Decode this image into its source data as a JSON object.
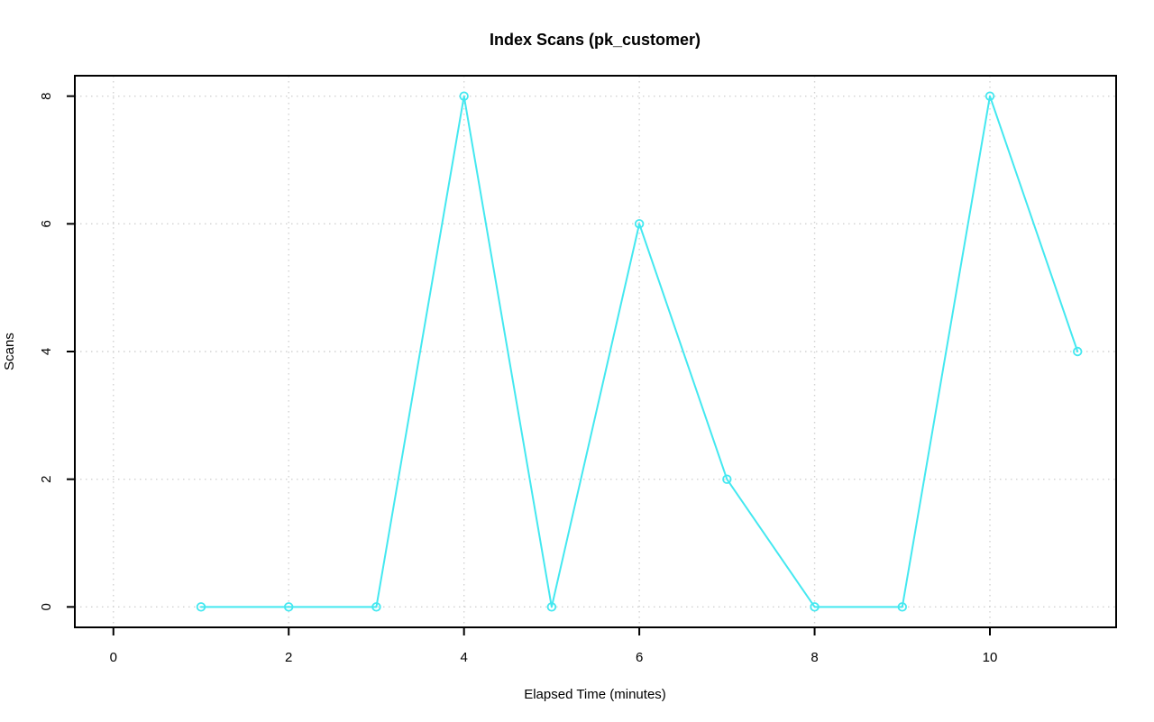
{
  "chart_data": {
    "type": "line",
    "title": "Index Scans (pk_customer)",
    "xlabel": "Elapsed Time (minutes)",
    "ylabel": "Scans",
    "x": [
      1,
      2,
      3,
      4,
      5,
      6,
      7,
      8,
      9,
      10,
      11
    ],
    "values": [
      0,
      0,
      0,
      8,
      0,
      6,
      2,
      0,
      0,
      8,
      4
    ],
    "xticks": [
      0,
      2,
      4,
      6,
      8,
      10
    ],
    "yticks": [
      0,
      2,
      4,
      6,
      8
    ],
    "xlim": [
      -0.44,
      11.44
    ],
    "ylim": [
      -0.32,
      8.32
    ],
    "grid": "dotted",
    "legend": "none",
    "marker": "open-circle",
    "line_color": "#44e8f0",
    "grid_color": "#d2d2d2",
    "axis_color": "#000000",
    "background": "#ffffff"
  }
}
